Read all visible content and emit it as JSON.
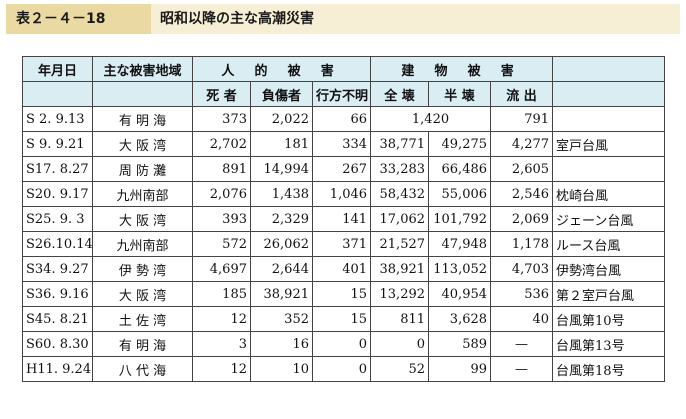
{
  "header": {
    "label": "表２－４－18",
    "title": "昭和以降の主な高潮災害"
  },
  "table": {
    "headers": {
      "date": "年月日",
      "area": "主な被害地域",
      "human": "人 的 被 害",
      "building": "建 物 被 害",
      "dead": "死 者",
      "injured": "負傷者",
      "missing": "行方不明",
      "total_destroyed": "全 壊",
      "half_destroyed": "半 壊",
      "washed_away": "流 出"
    },
    "rows": [
      {
        "date": "S 2. 9.13",
        "area": "有 明 海",
        "dead": "373",
        "injured": "2,022",
        "missing": "66",
        "total": "1,420",
        "half": "",
        "washed": "791",
        "note": ""
      },
      {
        "date": "S 9. 9.21",
        "area": "大 阪 湾",
        "dead": "2,702",
        "injured": "181",
        "missing": "334",
        "total": "38,771",
        "half": "49,275",
        "washed": "4,277",
        "note": "室戸台風"
      },
      {
        "date": "S17. 8.27",
        "area": "周 防 灘",
        "dead": "891",
        "injured": "14,994",
        "missing": "267",
        "total": "33,283",
        "half": "66,486",
        "washed": "2,605",
        "note": ""
      },
      {
        "date": "S20. 9.17",
        "area": "九州南部",
        "dead": "2,076",
        "injured": "1,438",
        "missing": "1,046",
        "total": "58,432",
        "half": "55,006",
        "washed": "2,546",
        "note": "枕崎台風"
      },
      {
        "date": "S25. 9. 3",
        "area": "大 阪 湾",
        "dead": "393",
        "injured": "2,329",
        "missing": "141",
        "total": "17,062",
        "half": "101,792",
        "washed": "2,069",
        "note": "ジェーン台風"
      },
      {
        "date": "S26.10.14",
        "area": "九州南部",
        "dead": "572",
        "injured": "26,062",
        "missing": "371",
        "total": "21,527",
        "half": "47,948",
        "washed": "1,178",
        "note": "ルース台風"
      },
      {
        "date": "S34. 9.27",
        "area": "伊 勢 湾",
        "dead": "4,697",
        "injured": "2,644",
        "missing": "401",
        "total": "38,921",
        "half": "113,052",
        "washed": "4,703",
        "note": "伊勢湾台風"
      },
      {
        "date": "S36. 9.16",
        "area": "大 阪 湾",
        "dead": "185",
        "injured": "38,921",
        "missing": "15",
        "total": "13,292",
        "half": "40,954",
        "washed": "536",
        "note": "第２室戸台風"
      },
      {
        "date": "S45. 8.21",
        "area": "土 佐 湾",
        "dead": "12",
        "injured": "352",
        "missing": "15",
        "total": "811",
        "half": "3,628",
        "washed": "40",
        "note": "台風第10号"
      },
      {
        "date": "S60. 8.30",
        "area": "有 明 海",
        "dead": "3",
        "injured": "16",
        "missing": "0",
        "total": "0",
        "half": "589",
        "washed": "—",
        "note": "台風第13号"
      },
      {
        "date": "H11. 9.24",
        "area": "八 代 海",
        "dead": "12",
        "injured": "10",
        "missing": "0",
        "total": "52",
        "half": "99",
        "washed": "—",
        "note": "台風第18号"
      }
    ]
  }
}
